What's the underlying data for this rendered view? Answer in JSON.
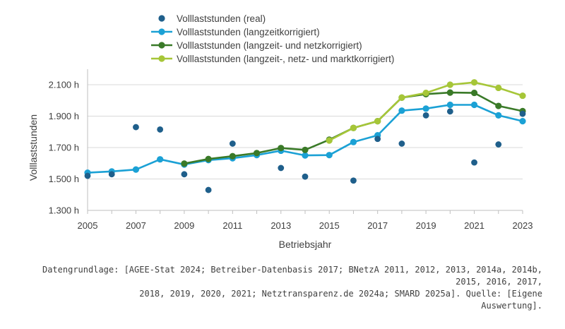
{
  "chart_data": {
    "type": "line",
    "ylabel": "Volllaststunden",
    "xlabel": "Betriebsjahr",
    "ylim": [
      1300,
      2100
    ],
    "yticks": [
      1300,
      1500,
      1700,
      1900,
      2100
    ],
    "ytick_labels": [
      "1.300 h",
      "1.500 h",
      "1.700 h",
      "1.900 h",
      "2.100 h"
    ],
    "xlim": [
      2005,
      2023
    ],
    "xticks": [
      2005,
      2007,
      2009,
      2011,
      2013,
      2015,
      2017,
      2019,
      2021,
      2023
    ],
    "xtick_labels": [
      "2005",
      "2007",
      "2009",
      "2011",
      "2013",
      "2015",
      "2017",
      "2019",
      "2021",
      "2023"
    ],
    "grid": "horizontal",
    "legend_position": "top-left",
    "series": [
      {
        "name": "Volllaststunden (real)",
        "style": "scatter",
        "color": "#1f5f8b",
        "x": [
          2005,
          2006,
          2007,
          2008,
          2009,
          2010,
          2011,
          2013,
          2014,
          2016,
          2017,
          2018,
          2019,
          2020,
          2021,
          2022,
          2023
        ],
        "y": [
          1520,
          1530,
          1830,
          1815,
          1530,
          1430,
          1725,
          1570,
          1515,
          1490,
          1755,
          1725,
          1905,
          1930,
          1605,
          1720,
          1915
        ]
      },
      {
        "name": "Volllaststunden (langzeitkorrigiert)",
        "style": "line",
        "color": "#1ba1d5",
        "x": [
          2005,
          2006,
          2007,
          2008,
          2009,
          2010,
          2011,
          2012,
          2013,
          2014,
          2015,
          2016,
          2017,
          2018,
          2019,
          2020,
          2021,
          2022,
          2023
        ],
        "y": [
          1540,
          1548,
          1560,
          1625,
          1592,
          1620,
          1632,
          1652,
          1680,
          1650,
          1652,
          1735,
          1778,
          1935,
          1948,
          1972,
          1972,
          1905,
          1868
        ]
      },
      {
        "name": "Volllaststunden (langzeit- und netzkorrigiert)",
        "style": "line",
        "color": "#3a7a28",
        "x": [
          2009,
          2010,
          2011,
          2012,
          2013,
          2014,
          2015,
          2016,
          2017,
          2018,
          2019,
          2020,
          2021,
          2022,
          2023
        ],
        "y": [
          1598,
          1627,
          1645,
          1665,
          1697,
          1685,
          1750,
          1825,
          1868,
          2018,
          2040,
          2050,
          2048,
          1965,
          1932
        ]
      },
      {
        "name": "Volllaststunden (langzeit-, netz- und marktkorrigiert)",
        "style": "line",
        "color": "#a6c638",
        "x": [
          2015,
          2016,
          2017,
          2018,
          2019,
          2020,
          2021,
          2022,
          2023
        ],
        "y": [
          1745,
          1825,
          1868,
          2018,
          2048,
          2100,
          2115,
          2080,
          2030
        ]
      }
    ]
  },
  "footnote": {
    "lines": [
      "Datengrundlage: [AGEE-Stat 2024; Betreiber-Datenbasis 2017; BNetzA 2011, 2012, 2013, 2014a, 2014b, 2015, 2016, 2017,",
      "2018, 2019, 2020, 2021; Netztransparenz.de 2024a; SMARD 2025a]. Quelle: [Eigene",
      "Auswertung]."
    ]
  }
}
